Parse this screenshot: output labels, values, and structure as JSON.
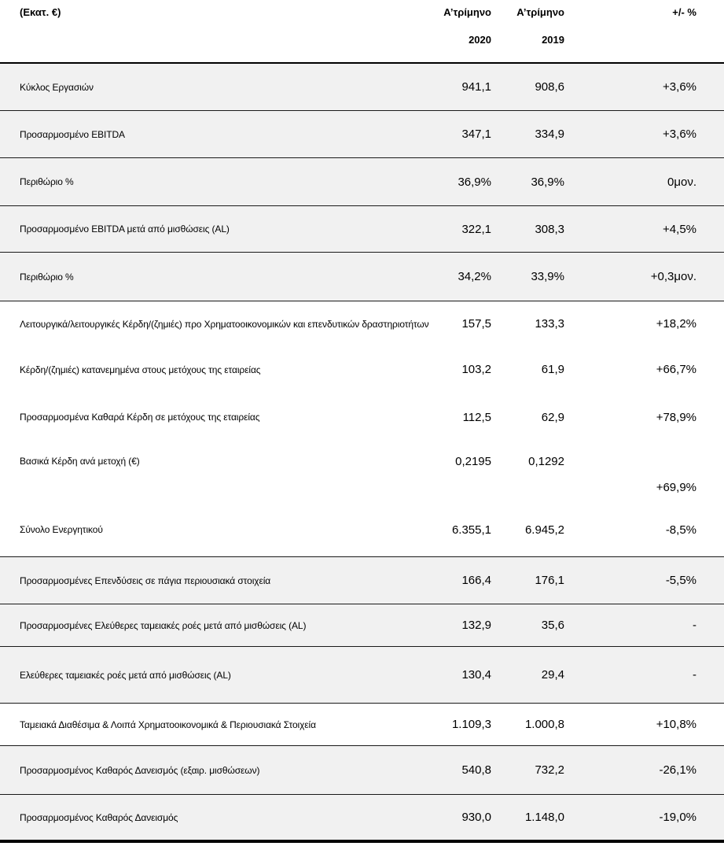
{
  "header": {
    "unit_label": "(Εκατ. €)",
    "col_2020_period": "Α’τρίμηνο",
    "col_2020_year": "2020",
    "col_2019_period": "Α’τρίμηνο",
    "col_2019_year": "2019",
    "col_change": "+/- %"
  },
  "colors": {
    "row_shade": "#f1f1f1",
    "rule_line": "#1a1a1a",
    "text": "#000000"
  },
  "rows": [
    {
      "label": "Κύκλος Εργασιών",
      "v2020": "941,1",
      "v2019": "908,6",
      "change": "+3,6%",
      "shaded": true
    },
    {
      "label": "Προσαρμοσμένο EBITDA",
      "v2020": "347,1",
      "v2019": "334,9",
      "change": "+3,6%",
      "shaded": true
    },
    {
      "label": "Περιθώριο %",
      "v2020": "36,9%",
      "v2019": "36,9%",
      "change": "0μον.",
      "shaded": true
    },
    {
      "label": "Προσαρμοσμένο EBITDA μετά από μισθώσεις (AL)",
      "v2020": "322,1",
      "v2019": "308,3",
      "change": "+4,5%",
      "shaded": true
    },
    {
      "label": "Περιθώριο %",
      "v2020": "34,2%",
      "v2019": "33,9%",
      "change": "+0,3μον.",
      "shaded": true
    },
    {
      "label": "Λειτουργικά/λειτουργικές Κέρδη/(ζημιές) προ Χρηματοοικονομικών και επενδυτικών δραστηριοτήτων",
      "v2020": "157,5",
      "v2019": "133,3",
      "change": "+18,2%",
      "shaded": false
    },
    {
      "label": "Κέρδη/(ζημιές) κατανεμημένα στους μετόχους της εταιρείας",
      "v2020": "103,2",
      "v2019": "61,9",
      "change": "+66,7%",
      "shaded": false
    },
    {
      "label": "Προσαρμοσμένα Καθαρά Κέρδη σε μετόχους της εταιρείας",
      "v2020": "112,5",
      "v2019": "62,9",
      "change": "+78,9%",
      "shaded": false
    },
    {
      "label": "Βασικά Κέρδη ανά μετοχή (€)",
      "v2020": "0,2195",
      "v2019": "0,1292",
      "change": "",
      "shaded": false
    },
    {
      "label": "",
      "v2020": "",
      "v2019": "",
      "change": "+69,9%",
      "shaded": false,
      "continuation": true
    },
    {
      "label": "Σύνολο Ενεργητικού",
      "v2020": "6.355,1",
      "v2019": "6.945,2",
      "change": "-8,5%",
      "shaded": false
    },
    {
      "label": "Προσαρμοσμένες Επενδύσεις σε πάγια περιουσιακά στοιχεία",
      "v2020": "166,4",
      "v2019": "176,1",
      "change": "-5,5%",
      "shaded": true
    },
    {
      "label": "Προσαρμοσμένες  Ελεύθερες ταμειακές ροές μετά από μισθώσεις (AL)",
      "v2020": "132,9",
      "v2019": "35,6",
      "change": "-",
      "shaded": true
    },
    {
      "label": "Ελεύθερες ταμειακές ροές μετά από μισθώσεις (AL)",
      "v2020": "130,4",
      "v2019": "29,4",
      "change": "-",
      "shaded": true
    },
    {
      "label": "Ταμειακά Διαθέσιμα & Λοιπά Χρηματοοικονομικά & Περιουσιακά Στοιχεία",
      "v2020": "1.109,3",
      "v2019": "1.000,8",
      "change": "+10,8%",
      "shaded": false
    },
    {
      "label": "Προσαρμοσμένος Καθαρός Δανεισμός (εξαιρ. μισθώσεων)",
      "v2020": "540,8",
      "v2019": "732,2",
      "change": "-26,1%",
      "shaded": true
    },
    {
      "label": "Προσαρμοσμένος Καθαρός Δανεισμός",
      "v2020": "930,0",
      "v2019": "1.148,0",
      "change": "-19,0%",
      "shaded": true
    }
  ]
}
